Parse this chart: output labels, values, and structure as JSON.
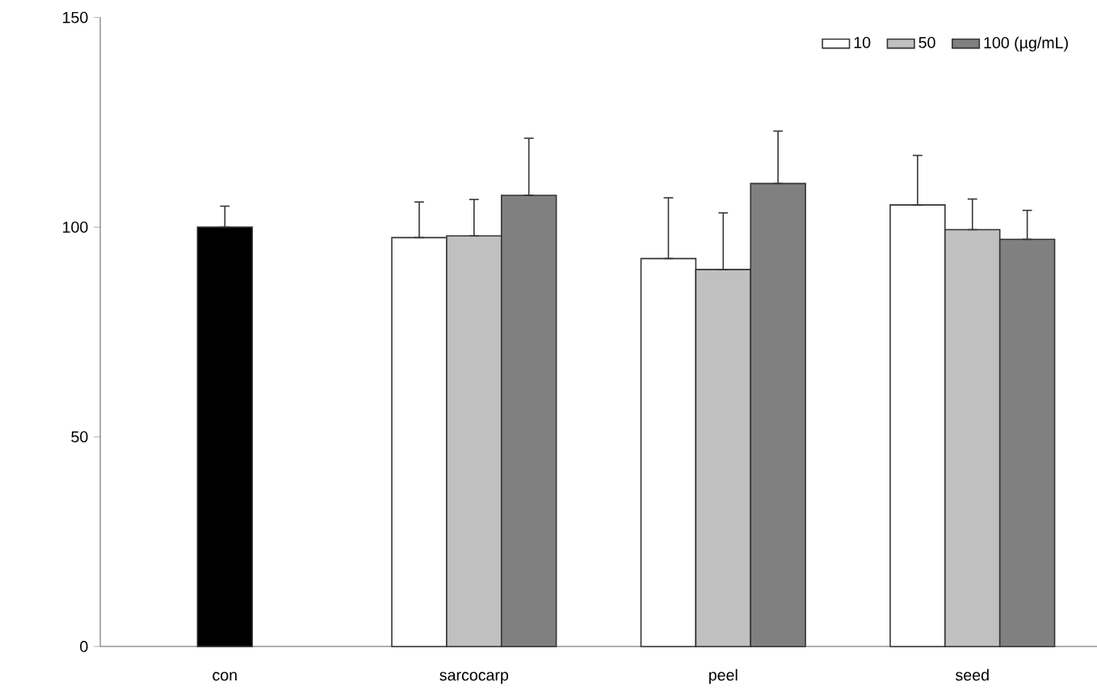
{
  "chart_data": {
    "type": "bar",
    "categories": [
      "con",
      "sarcocarp",
      "peel",
      "seed"
    ],
    "series": [
      {
        "color": "#000000",
        "values": [
          100,
          null,
          null,
          null
        ],
        "errors": [
          [
            100,
            105
          ],
          null,
          null,
          null
        ]
      },
      {
        "name": "10",
        "color": "#ffffff",
        "values": [
          null,
          97.5,
          92.5,
          105.3
        ],
        "errors": [
          null,
          [
            97.5,
            106
          ],
          [
            92.5,
            107
          ],
          [
            105.3,
            117.1
          ]
        ]
      },
      {
        "name": "50",
        "color": "#c0c0c0",
        "values": [
          null,
          97.9,
          89.9,
          99.4
        ],
        "errors": [
          null,
          [
            97.9,
            106.6
          ],
          [
            89.9,
            103.4
          ],
          [
            99.4,
            106.7
          ]
        ]
      },
      {
        "name": "100 (µg/mL)",
        "color": "#808080",
        "values": [
          null,
          107.6,
          110.4,
          97.1
        ],
        "errors": [
          null,
          [
            107.6,
            121.2
          ],
          [
            110.4,
            122.9
          ],
          [
            97.1,
            104
          ]
        ]
      }
    ],
    "ylim": [
      0,
      150
    ],
    "yticks": [
      0,
      50,
      100,
      150
    ],
    "legend": "top right"
  }
}
